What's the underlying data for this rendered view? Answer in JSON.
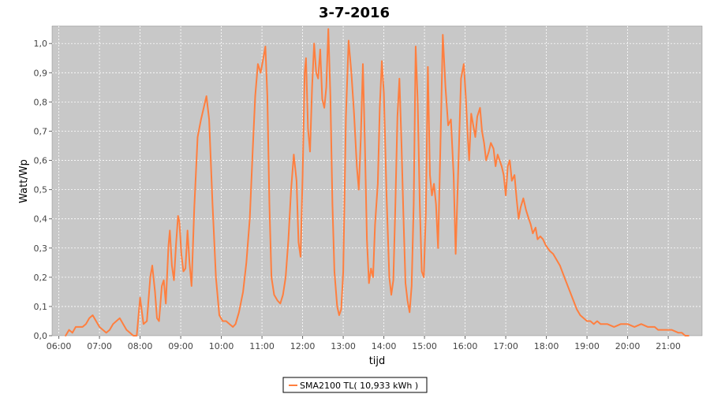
{
  "colors": {
    "series": "#ff7f3f",
    "plot_background": "#c8c8c8",
    "grid": "#ffffff"
  },
  "chart_data": {
    "type": "line",
    "title": "3-7-2016",
    "xlabel": "tijd",
    "ylabel": "Watt/Wp",
    "x_ticks": [
      "06:00",
      "07:00",
      "08:00",
      "09:00",
      "10:00",
      "11:00",
      "12:00",
      "13:00",
      "14:00",
      "15:00",
      "16:00",
      "17:00",
      "18:00",
      "19:00",
      "20:00",
      "21:00"
    ],
    "y_ticks": [
      "0,0",
      "0,1",
      "0,2",
      "0,3",
      "0,4",
      "0,5",
      "0,6",
      "0,7",
      "0,8",
      "0,9",
      "1,0"
    ],
    "xlim": [
      "05:50",
      "21:50"
    ],
    "ylim": [
      0,
      1.06
    ],
    "grid": true,
    "legend_position": "bottom-center",
    "series": [
      {
        "name": "SMA2100 TL( 10,933 kWh )",
        "points": [
          [
            "06:10",
            0.0
          ],
          [
            "06:15",
            0.02
          ],
          [
            "06:20",
            0.01
          ],
          [
            "06:25",
            0.03
          ],
          [
            "06:35",
            0.03
          ],
          [
            "06:40",
            0.04
          ],
          [
            "06:45",
            0.06
          ],
          [
            "06:50",
            0.07
          ],
          [
            "06:55",
            0.05
          ],
          [
            "07:00",
            0.03
          ],
          [
            "07:05",
            0.02
          ],
          [
            "07:10",
            0.01
          ],
          [
            "07:15",
            0.02
          ],
          [
            "07:20",
            0.04
          ],
          [
            "07:25",
            0.05
          ],
          [
            "07:30",
            0.06
          ],
          [
            "07:35",
            0.04
          ],
          [
            "07:40",
            0.02
          ],
          [
            "07:45",
            0.01
          ],
          [
            "07:50",
            0.0
          ],
          [
            "07:55",
            0.0
          ],
          [
            "08:00",
            0.13
          ],
          [
            "08:05",
            0.04
          ],
          [
            "08:10",
            0.05
          ],
          [
            "08:15",
            0.2
          ],
          [
            "08:18",
            0.24
          ],
          [
            "08:22",
            0.15
          ],
          [
            "08:25",
            0.06
          ],
          [
            "08:28",
            0.05
          ],
          [
            "08:32",
            0.17
          ],
          [
            "08:35",
            0.19
          ],
          [
            "08:38",
            0.11
          ],
          [
            "08:42",
            0.31
          ],
          [
            "08:44",
            0.36
          ],
          [
            "08:47",
            0.24
          ],
          [
            "08:50",
            0.19
          ],
          [
            "08:53",
            0.31
          ],
          [
            "08:56",
            0.41
          ],
          [
            "08:58",
            0.39
          ],
          [
            "09:01",
            0.28
          ],
          [
            "09:04",
            0.22
          ],
          [
            "09:07",
            0.23
          ],
          [
            "09:10",
            0.36
          ],
          [
            "09:13",
            0.25
          ],
          [
            "09:16",
            0.17
          ],
          [
            "09:20",
            0.44
          ],
          [
            "09:25",
            0.68
          ],
          [
            "09:30",
            0.74
          ],
          [
            "09:35",
            0.79
          ],
          [
            "09:38",
            0.82
          ],
          [
            "09:42",
            0.74
          ],
          [
            "09:47",
            0.45
          ],
          [
            "09:52",
            0.2
          ],
          [
            "09:57",
            0.07
          ],
          [
            "10:02",
            0.05
          ],
          [
            "10:07",
            0.05
          ],
          [
            "10:12",
            0.04
          ],
          [
            "10:17",
            0.03
          ],
          [
            "10:21",
            0.04
          ],
          [
            "10:26",
            0.08
          ],
          [
            "10:32",
            0.15
          ],
          [
            "10:37",
            0.25
          ],
          [
            "10:42",
            0.4
          ],
          [
            "10:46",
            0.62
          ],
          [
            "10:50",
            0.82
          ],
          [
            "10:54",
            0.93
          ],
          [
            "10:58",
            0.9
          ],
          [
            "11:02",
            0.95
          ],
          [
            "11:05",
            0.99
          ],
          [
            "11:08",
            0.82
          ],
          [
            "11:11",
            0.45
          ],
          [
            "11:14",
            0.2
          ],
          [
            "11:18",
            0.14
          ],
          [
            "11:23",
            0.12
          ],
          [
            "11:27",
            0.11
          ],
          [
            "11:31",
            0.14
          ],
          [
            "11:35",
            0.2
          ],
          [
            "11:39",
            0.33
          ],
          [
            "11:43",
            0.5
          ],
          [
            "11:47",
            0.62
          ],
          [
            "11:51",
            0.53
          ],
          [
            "11:54",
            0.32
          ],
          [
            "11:57",
            0.27
          ],
          [
            "12:00",
            0.55
          ],
          [
            "12:03",
            0.9
          ],
          [
            "12:05",
            0.95
          ],
          [
            "12:08",
            0.71
          ],
          [
            "12:11",
            0.63
          ],
          [
            "12:14",
            0.85
          ],
          [
            "12:17",
            1.0
          ],
          [
            "12:20",
            0.9
          ],
          [
            "12:23",
            0.88
          ],
          [
            "12:26",
            0.98
          ],
          [
            "12:29",
            0.81
          ],
          [
            "12:32",
            0.78
          ],
          [
            "12:35",
            0.85
          ],
          [
            "12:38",
            1.05
          ],
          [
            "12:41",
            0.82
          ],
          [
            "12:44",
            0.45
          ],
          [
            "12:47",
            0.22
          ],
          [
            "12:51",
            0.1
          ],
          [
            "12:54",
            0.07
          ],
          [
            "12:57",
            0.09
          ],
          [
            "13:00",
            0.22
          ],
          [
            "13:04",
            0.75
          ],
          [
            "13:08",
            1.01
          ],
          [
            "13:12",
            0.9
          ],
          [
            "13:16",
            0.76
          ],
          [
            "13:20",
            0.58
          ],
          [
            "13:23",
            0.5
          ],
          [
            "13:26",
            0.68
          ],
          [
            "13:29",
            0.93
          ],
          [
            "13:32",
            0.65
          ],
          [
            "13:35",
            0.33
          ],
          [
            "13:38",
            0.18
          ],
          [
            "13:41",
            0.23
          ],
          [
            "13:44",
            0.2
          ],
          [
            "13:47",
            0.38
          ],
          [
            "13:51",
            0.52
          ],
          [
            "13:54",
            0.78
          ],
          [
            "13:57",
            0.94
          ],
          [
            "14:00",
            0.83
          ],
          [
            "14:04",
            0.48
          ],
          [
            "14:08",
            0.2
          ],
          [
            "14:11",
            0.14
          ],
          [
            "14:14",
            0.19
          ],
          [
            "14:17",
            0.45
          ],
          [
            "14:20",
            0.75
          ],
          [
            "14:23",
            0.88
          ],
          [
            "14:26",
            0.66
          ],
          [
            "14:29",
            0.4
          ],
          [
            "14:32",
            0.18
          ],
          [
            "14:35",
            0.12
          ],
          [
            "14:38",
            0.08
          ],
          [
            "14:41",
            0.17
          ],
          [
            "14:44",
            0.45
          ],
          [
            "14:47",
            0.99
          ],
          [
            "14:50",
            0.8
          ],
          [
            "14:53",
            0.45
          ],
          [
            "14:56",
            0.22
          ],
          [
            "14:59",
            0.2
          ],
          [
            "15:02",
            0.42
          ],
          [
            "15:05",
            0.92
          ],
          [
            "15:08",
            0.55
          ],
          [
            "15:11",
            0.48
          ],
          [
            "15:14",
            0.52
          ],
          [
            "15:17",
            0.45
          ],
          [
            "15:20",
            0.3
          ],
          [
            "15:24",
            0.7
          ],
          [
            "15:27",
            1.03
          ],
          [
            "15:31",
            0.85
          ],
          [
            "15:35",
            0.72
          ],
          [
            "15:39",
            0.74
          ],
          [
            "15:43",
            0.55
          ],
          [
            "15:46",
            0.28
          ],
          [
            "15:50",
            0.58
          ],
          [
            "15:54",
            0.88
          ],
          [
            "15:58",
            0.93
          ],
          [
            "16:01",
            0.82
          ],
          [
            "16:04",
            0.68
          ],
          [
            "16:06",
            0.6
          ],
          [
            "16:09",
            0.76
          ],
          [
            "16:12",
            0.72
          ],
          [
            "16:15",
            0.68
          ],
          [
            "16:18",
            0.75
          ],
          [
            "16:22",
            0.78
          ],
          [
            "16:25",
            0.7
          ],
          [
            "16:28",
            0.66
          ],
          [
            "16:31",
            0.6
          ],
          [
            "16:35",
            0.63
          ],
          [
            "16:38",
            0.66
          ],
          [
            "16:42",
            0.64
          ],
          [
            "16:45",
            0.58
          ],
          [
            "16:48",
            0.62
          ],
          [
            "16:51",
            0.6
          ],
          [
            "16:54",
            0.58
          ],
          [
            "16:57",
            0.55
          ],
          [
            "17:00",
            0.48
          ],
          [
            "17:03",
            0.58
          ],
          [
            "17:06",
            0.6
          ],
          [
            "17:09",
            0.53
          ],
          [
            "17:13",
            0.55
          ],
          [
            "17:16",
            0.47
          ],
          [
            "17:19",
            0.4
          ],
          [
            "17:22",
            0.44
          ],
          [
            "17:26",
            0.47
          ],
          [
            "17:30",
            0.43
          ],
          [
            "17:34",
            0.4
          ],
          [
            "17:37",
            0.38
          ],
          [
            "17:40",
            0.35
          ],
          [
            "17:44",
            0.37
          ],
          [
            "17:47",
            0.33
          ],
          [
            "17:51",
            0.34
          ],
          [
            "17:55",
            0.33
          ],
          [
            "17:59",
            0.31
          ],
          [
            "18:05",
            0.29
          ],
          [
            "18:10",
            0.28
          ],
          [
            "18:15",
            0.26
          ],
          [
            "18:20",
            0.24
          ],
          [
            "18:25",
            0.21
          ],
          [
            "18:30",
            0.18
          ],
          [
            "18:35",
            0.15
          ],
          [
            "18:40",
            0.12
          ],
          [
            "18:45",
            0.09
          ],
          [
            "18:50",
            0.07
          ],
          [
            "18:55",
            0.06
          ],
          [
            "19:00",
            0.05
          ],
          [
            "19:05",
            0.05
          ],
          [
            "19:10",
            0.04
          ],
          [
            "19:15",
            0.05
          ],
          [
            "19:20",
            0.04
          ],
          [
            "19:30",
            0.04
          ],
          [
            "19:40",
            0.03
          ],
          [
            "19:50",
            0.04
          ],
          [
            "20:00",
            0.04
          ],
          [
            "20:10",
            0.03
          ],
          [
            "20:20",
            0.04
          ],
          [
            "20:30",
            0.03
          ],
          [
            "20:40",
            0.03
          ],
          [
            "20:45",
            0.02
          ],
          [
            "20:55",
            0.02
          ],
          [
            "21:05",
            0.02
          ],
          [
            "21:15",
            0.01
          ],
          [
            "21:20",
            0.01
          ],
          [
            "21:25",
            0.0
          ],
          [
            "21:30",
            0.0
          ]
        ]
      }
    ]
  }
}
